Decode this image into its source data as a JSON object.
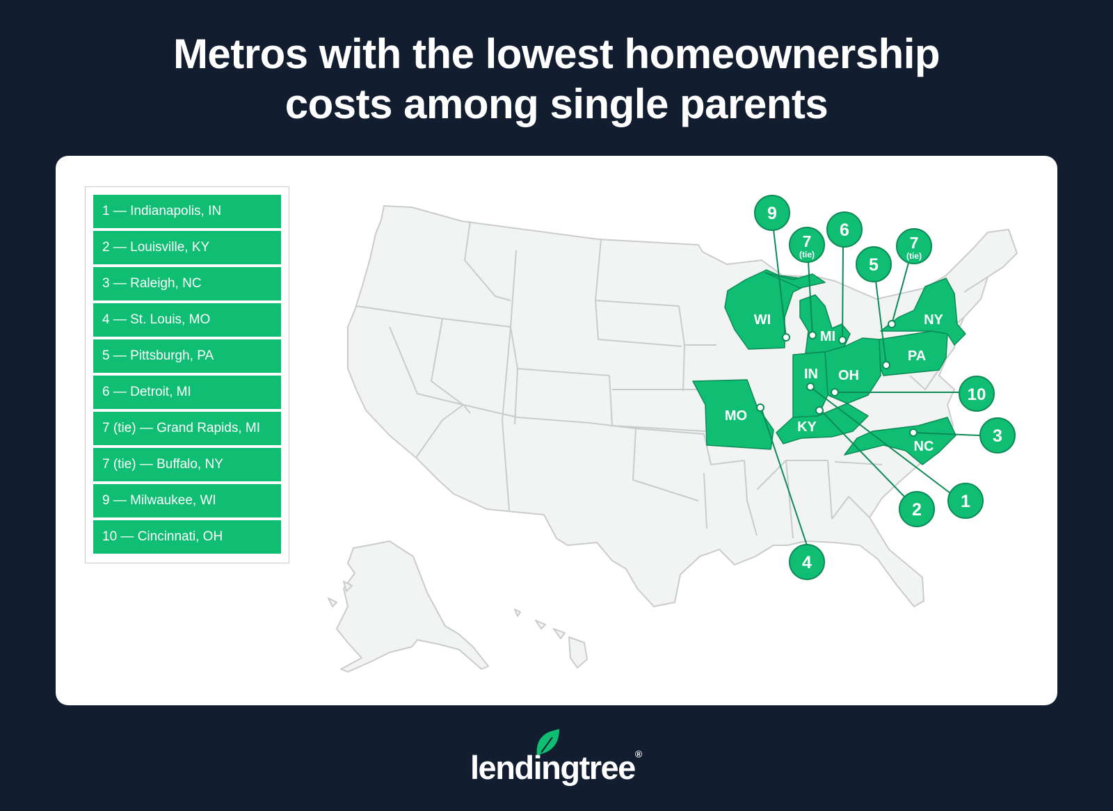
{
  "title": {
    "line1": "Metros with the lowest homeownership",
    "line2": "costs among single parents"
  },
  "legend": [
    "1 — Indianapolis, IN",
    "2 — Louisville, KY",
    "3 — Raleigh, NC",
    "4 — St. Louis, MO",
    "5 — Pittsburgh, PA",
    "6 — Detroit, MI",
    "7 (tie) — Grand Rapids, MI",
    "7 (tie) — Buffalo, NY",
    "9 — Milwaukee, WI",
    "10 — Cincinnati, OH"
  ],
  "states": [
    "WI",
    "MI",
    "NY",
    "PA",
    "OH",
    "IN",
    "KY",
    "MO",
    "NC"
  ],
  "callouts": [
    {
      "rank": "1",
      "tie": "",
      "metro": "Indianapolis, IN"
    },
    {
      "rank": "2",
      "tie": "",
      "metro": "Louisville, KY"
    },
    {
      "rank": "3",
      "tie": "",
      "metro": "Raleigh, NC"
    },
    {
      "rank": "4",
      "tie": "",
      "metro": "St. Louis, MO"
    },
    {
      "rank": "5",
      "tie": "",
      "metro": "Pittsburgh, PA"
    },
    {
      "rank": "6",
      "tie": "",
      "metro": "Detroit, MI"
    },
    {
      "rank": "7",
      "tie": "(tie)",
      "metro": "Grand Rapids, MI"
    },
    {
      "rank": "7",
      "tie": "(tie)",
      "metro": "Buffalo, NY"
    },
    {
      "rank": "9",
      "tie": "",
      "metro": "Milwaukee, WI"
    },
    {
      "rank": "10",
      "tie": "",
      "metro": "Cincinnati, OH"
    }
  ],
  "colors": {
    "background": "#121e30",
    "highlight": "#0fbe73",
    "highlight_stroke": "#0b8a55",
    "map_fill": "#f2f3f3",
    "map_stroke": "#c9cbcd"
  },
  "brand": {
    "logo_text": "lendingtree",
    "trademark": "®"
  }
}
